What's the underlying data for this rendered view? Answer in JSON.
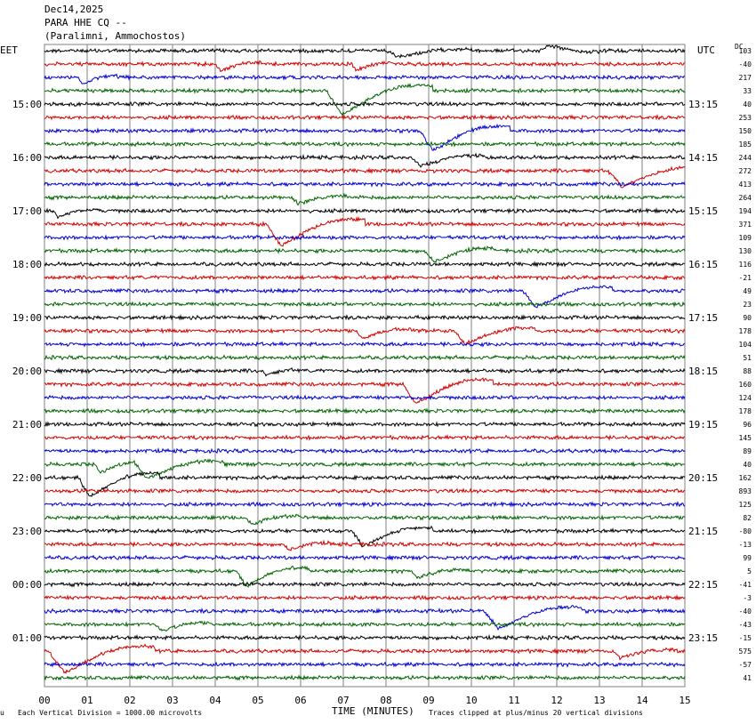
{
  "header": {
    "date": "Dec14,2025",
    "station": "PARA HHE CQ --",
    "location": "(Paralimni, Ammochostos)"
  },
  "left_tz": "EET",
  "right_tz": "UTC",
  "dc_label": "DC",
  "footer": {
    "vertical_division": "Each Vertical Division = 1000.00 microvolts",
    "xlabel": "TIME (MINUTES)",
    "clip_note": "Traces clipped at plus/minus 20 vertical divisions",
    "corner_mark": "u"
  },
  "colors": {
    "black": "#000000",
    "red": "#d40000",
    "blue": "#0000d4",
    "green": "#006400",
    "grid": "#808080"
  },
  "chart_data": {
    "type": "line",
    "title": "PARA HHE CQ --",
    "xlabel": "TIME (MINUTES)",
    "x_ticks": [
      "00",
      "01",
      "02",
      "03",
      "04",
      "05",
      "06",
      "07",
      "08",
      "09",
      "10",
      "11",
      "12",
      "13",
      "14",
      "15"
    ],
    "xlim": [
      0,
      15
    ],
    "grid": true,
    "trace_count": 48,
    "trace_color_cycle": [
      "black",
      "red",
      "blue",
      "green"
    ],
    "left_labels": [
      {
        "trace": 4,
        "text": "15:00"
      },
      {
        "trace": 8,
        "text": "16:00"
      },
      {
        "trace": 12,
        "text": "17:00"
      },
      {
        "trace": 16,
        "text": "18:00"
      },
      {
        "trace": 20,
        "text": "19:00"
      },
      {
        "trace": 24,
        "text": "20:00"
      },
      {
        "trace": 28,
        "text": "21:00"
      },
      {
        "trace": 32,
        "text": "22:00"
      },
      {
        "trace": 36,
        "text": "23:00"
      },
      {
        "trace": 40,
        "text": "00:00"
      },
      {
        "trace": 44,
        "text": "01:00"
      }
    ],
    "right_labels": [
      {
        "trace": 4,
        "text": "13:15"
      },
      {
        "trace": 8,
        "text": "14:15"
      },
      {
        "trace": 12,
        "text": "15:15"
      },
      {
        "trace": 16,
        "text": "16:15"
      },
      {
        "trace": 20,
        "text": "17:15"
      },
      {
        "trace": 24,
        "text": "18:15"
      },
      {
        "trace": 28,
        "text": "19:15"
      },
      {
        "trace": 32,
        "text": "20:15"
      },
      {
        "trace": 36,
        "text": "21:15"
      },
      {
        "trace": 40,
        "text": "22:15"
      },
      {
        "trace": 44,
        "text": "23:15"
      }
    ],
    "dc_offsets": [
      103,
      -40,
      217,
      33,
      40,
      253,
      150,
      185,
      244,
      272,
      413,
      264,
      194,
      371,
      109,
      130,
      116,
      -21,
      49,
      23,
      90,
      178,
      104,
      51,
      88,
      160,
      124,
      178,
      96,
      145,
      89,
      40,
      162,
      893,
      125,
      82,
      -80,
      -13,
      99,
      5,
      -41,
      -3,
      -40,
      -43,
      -15,
      575,
      -57,
      41
    ],
    "events": [
      {
        "trace": 0,
        "minute": 8.0,
        "amp": 0.6,
        "len": 1.5
      },
      {
        "trace": 0,
        "minute": 11.6,
        "amp": -0.5,
        "len": 1.0
      },
      {
        "trace": 1,
        "minute": 4.0,
        "amp": 0.6,
        "len": 0.6
      },
      {
        "trace": 1,
        "minute": 7.2,
        "amp": 0.6,
        "len": 0.5
      },
      {
        "trace": 2,
        "minute": 0.8,
        "amp": 0.6,
        "len": 0.4
      },
      {
        "trace": 3,
        "minute": 6.6,
        "amp": 2.2,
        "len": 2.0
      },
      {
        "trace": 6,
        "minute": 8.8,
        "amp": 1.8,
        "len": 1.6
      },
      {
        "trace": 8,
        "minute": 8.6,
        "amp": 0.8,
        "len": 1.2
      },
      {
        "trace": 9,
        "minute": 13.2,
        "amp": 1.5,
        "len": 1.8
      },
      {
        "trace": 11,
        "minute": 5.8,
        "amp": 0.6,
        "len": 0.8
      },
      {
        "trace": 12,
        "minute": 0.2,
        "amp": 0.6,
        "len": 0.6
      },
      {
        "trace": 13,
        "minute": 5.2,
        "amp": 2.0,
        "len": 1.8
      },
      {
        "trace": 15,
        "minute": 8.9,
        "amp": 1.0,
        "len": 1.2
      },
      {
        "trace": 18,
        "minute": 11.2,
        "amp": 1.5,
        "len": 1.6
      },
      {
        "trace": 21,
        "minute": 7.3,
        "amp": 0.7,
        "len": 0.8
      },
      {
        "trace": 21,
        "minute": 9.6,
        "amp": 1.2,
        "len": 1.4
      },
      {
        "trace": 24,
        "minute": 5.1,
        "amp": 0.4,
        "len": 0.4
      },
      {
        "trace": 25,
        "minute": 8.4,
        "amp": 1.8,
        "len": 1.6
      },
      {
        "trace": 31,
        "minute": 1.2,
        "amp": 0.8,
        "len": 0.6
      },
      {
        "trace": 31,
        "minute": 2.1,
        "amp": 1.3,
        "len": 1.6
      },
      {
        "trace": 32,
        "minute": 0.8,
        "amp": 1.8,
        "len": 1.4
      },
      {
        "trace": 35,
        "minute": 4.7,
        "amp": 0.6,
        "len": 0.8
      },
      {
        "trace": 36,
        "minute": 7.2,
        "amp": 1.4,
        "len": 1.4
      },
      {
        "trace": 37,
        "minute": 5.6,
        "amp": 0.5,
        "len": 0.6
      },
      {
        "trace": 39,
        "minute": 4.5,
        "amp": 1.4,
        "len": 1.2
      },
      {
        "trace": 39,
        "minute": 8.6,
        "amp": 0.6,
        "len": 0.8
      },
      {
        "trace": 42,
        "minute": 10.3,
        "amp": 1.6,
        "len": 1.8
      },
      {
        "trace": 43,
        "minute": 2.6,
        "amp": 0.6,
        "len": 0.8
      },
      {
        "trace": 45,
        "minute": 0.1,
        "amp": 2.0,
        "len": 2.0
      },
      {
        "trace": 45,
        "minute": 13.3,
        "amp": 0.6,
        "len": 1.0
      }
    ]
  }
}
